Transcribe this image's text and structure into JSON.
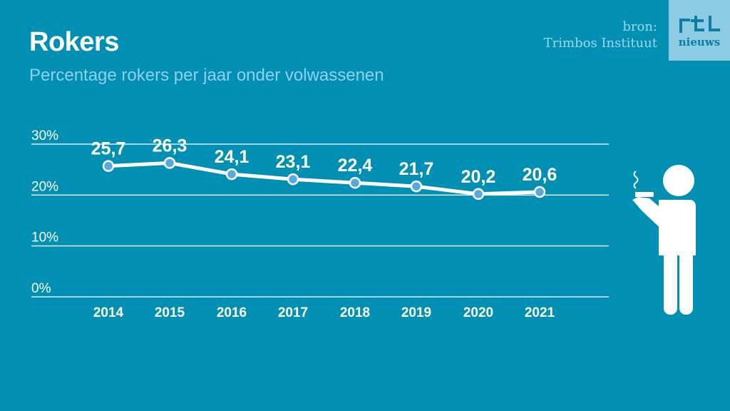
{
  "header": {
    "title": "Rokers",
    "subtitle": "Percentage rokers per jaar onder volwassenen",
    "source_label": "bron:",
    "source_name": "Trimbos Instituut"
  },
  "logo": {
    "top": "rtl",
    "bottom": "nieuws"
  },
  "illustration": "smoking-person-icon",
  "colors": {
    "background": "#0190b4",
    "line": "#ffffff",
    "marker_fill": "#5aa9dc",
    "subtitle": "#8fd0ec",
    "logo_bg": "#8ccbe1"
  },
  "chart_data": {
    "type": "line",
    "title": "Rokers",
    "subtitle": "Percentage rokers per jaar onder volwassenen",
    "xlabel": "",
    "ylabel": "",
    "categories": [
      "2014",
      "2015",
      "2016",
      "2017",
      "2018",
      "2019",
      "2020",
      "2021"
    ],
    "series": [
      {
        "name": "Percentage rokers",
        "values": [
          25.7,
          26.3,
          24.1,
          23.1,
          22.4,
          21.7,
          20.2,
          20.6
        ],
        "labels": [
          "25,7",
          "26,3",
          "24,1",
          "23,1",
          "22,4",
          "21,7",
          "20,2",
          "20,6"
        ]
      }
    ],
    "ylim": [
      0,
      30
    ],
    "yticks": [
      0,
      10,
      20,
      30
    ],
    "ytick_labels": [
      "0%",
      "10%",
      "20%",
      "30%"
    ],
    "grid": true,
    "legend": "none",
    "source": "bron: Trimbos Instituut"
  }
}
